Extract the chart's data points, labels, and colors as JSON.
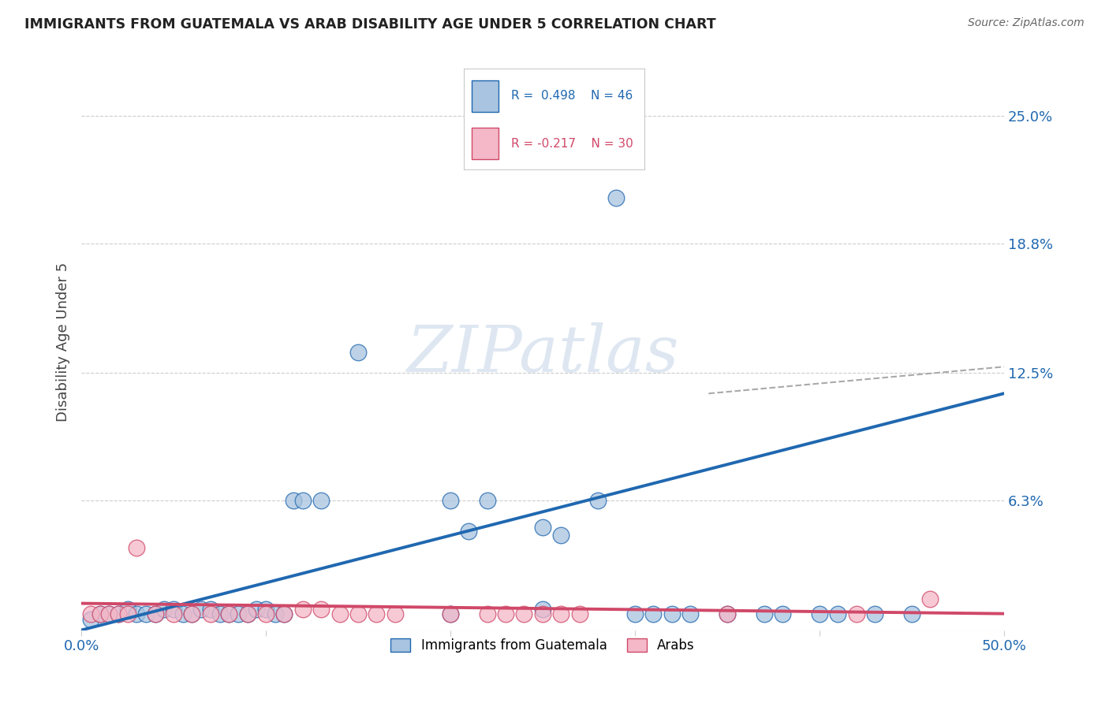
{
  "title": "IMMIGRANTS FROM GUATEMALA VS ARAB DISABILITY AGE UNDER 5 CORRELATION CHART",
  "source": "Source: ZipAtlas.com",
  "ylabel": "Disability Age Under 5",
  "xlim": [
    0.0,
    0.5
  ],
  "ylim": [
    0.0,
    0.28
  ],
  "x_tick_vals": [
    0.0,
    0.1,
    0.2,
    0.3,
    0.4,
    0.5
  ],
  "x_tick_labels": [
    "0.0%",
    "",
    "",
    "",
    "",
    "50.0%"
  ],
  "y_tick_labels_right": [
    "25.0%",
    "18.8%",
    "12.5%",
    "6.3%",
    ""
  ],
  "y_tick_vals_right": [
    0.25,
    0.188,
    0.125,
    0.063,
    0.0
  ],
  "R_blue": 0.498,
  "N_blue": 46,
  "R_pink": -0.217,
  "N_pink": 30,
  "blue_color": "#a8c4e0",
  "blue_line_color": "#2068b0",
  "pink_color": "#f4b8c8",
  "pink_line_color": "#d04868",
  "scatter_blue_x": [
    0.005,
    0.01,
    0.015,
    0.02,
    0.025,
    0.03,
    0.035,
    0.04,
    0.045,
    0.05,
    0.055,
    0.06,
    0.065,
    0.07,
    0.075,
    0.08,
    0.085,
    0.09,
    0.095,
    0.1,
    0.105,
    0.11,
    0.115,
    0.12,
    0.13,
    0.15,
    0.2,
    0.2,
    0.21,
    0.22,
    0.25,
    0.25,
    0.26,
    0.28,
    0.3,
    0.32,
    0.35,
    0.37,
    0.4,
    0.43,
    0.45,
    0.29,
    0.31,
    0.33,
    0.38,
    0.41
  ],
  "scatter_blue_y": [
    0.005,
    0.008,
    0.008,
    0.008,
    0.01,
    0.008,
    0.008,
    0.008,
    0.01,
    0.01,
    0.008,
    0.008,
    0.01,
    0.01,
    0.008,
    0.008,
    0.008,
    0.008,
    0.01,
    0.01,
    0.008,
    0.008,
    0.063,
    0.063,
    0.063,
    0.135,
    0.008,
    0.063,
    0.048,
    0.063,
    0.01,
    0.05,
    0.046,
    0.063,
    0.008,
    0.008,
    0.008,
    0.008,
    0.008,
    0.008,
    0.008,
    0.21,
    0.008,
    0.008,
    0.008,
    0.008
  ],
  "scatter_pink_x": [
    0.005,
    0.01,
    0.015,
    0.02,
    0.025,
    0.03,
    0.04,
    0.05,
    0.06,
    0.07,
    0.08,
    0.09,
    0.1,
    0.11,
    0.12,
    0.13,
    0.14,
    0.15,
    0.16,
    0.17,
    0.2,
    0.22,
    0.23,
    0.24,
    0.25,
    0.26,
    0.27,
    0.35,
    0.42,
    0.46
  ],
  "scatter_pink_y": [
    0.008,
    0.008,
    0.008,
    0.008,
    0.008,
    0.04,
    0.008,
    0.008,
    0.008,
    0.008,
    0.008,
    0.008,
    0.008,
    0.008,
    0.01,
    0.01,
    0.008,
    0.008,
    0.008,
    0.008,
    0.008,
    0.008,
    0.008,
    0.008,
    0.008,
    0.008,
    0.008,
    0.008,
    0.008,
    0.015
  ],
  "blue_line_x0": 0.0,
  "blue_line_y0": 0.0,
  "blue_line_x1": 0.5,
  "blue_line_y1": 0.115,
  "pink_line_x0": 0.0,
  "pink_line_y0": 0.013,
  "pink_line_x1": 0.5,
  "pink_line_y1": 0.008,
  "dash_line_x0": 0.34,
  "dash_line_y0": 0.115,
  "dash_line_x1": 0.5,
  "dash_line_y1": 0.128,
  "watermark_text": "ZIPatlas",
  "watermark_color": "#c8d8e8",
  "grid_color": "#cccccc",
  "background_color": "#ffffff",
  "legend_blue_text": "R =  0.498    N = 46",
  "legend_pink_text": "R = -0.217    N = 30",
  "legend_blue_color": "#2068b0",
  "legend_pink_color": "#d04868",
  "bottom_legend_blue": "Immigrants from Guatemala",
  "bottom_legend_pink": "Arabs"
}
